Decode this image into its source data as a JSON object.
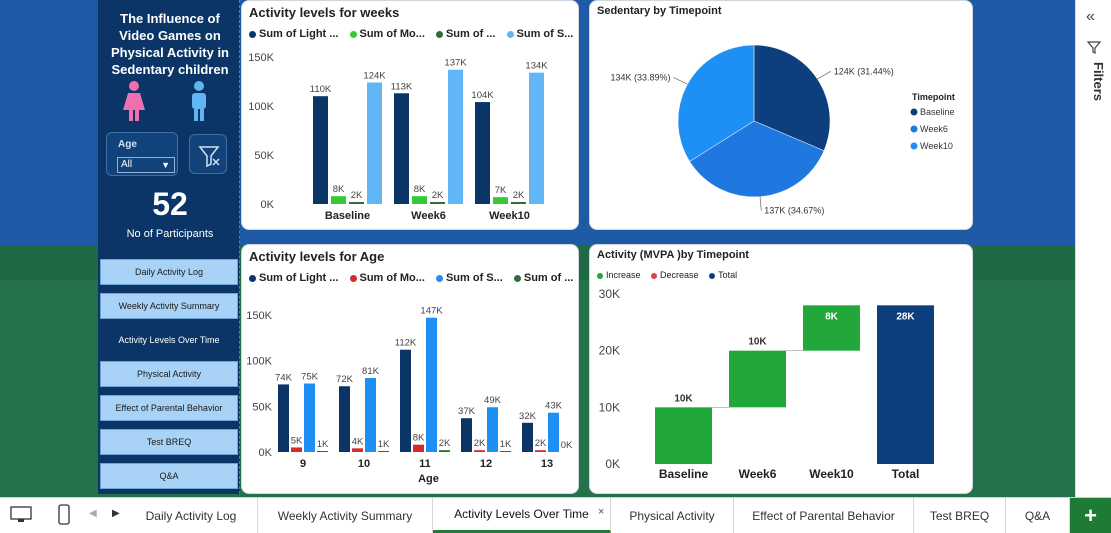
{
  "sidebar": {
    "title_lines": [
      "The Influence of",
      "Video Games on",
      "Physical Activity in",
      "Sedentary children"
    ],
    "age_label": "Age",
    "age_value": "All",
    "participants_count": "52",
    "participants_label": "No of Participants",
    "nav": [
      {
        "label": "Daily Activity Log"
      },
      {
        "label": "Weekly Activity Summary"
      },
      {
        "label": "Activity Levels Over Time"
      },
      {
        "label": "Physical Activity"
      },
      {
        "label": "Effect of Parental Behavior"
      },
      {
        "label": "Test BREQ"
      },
      {
        "label": "Q&A"
      }
    ]
  },
  "filters_pane": {
    "label": "Filters"
  },
  "tabs": {
    "items": [
      "Daily Activity Log",
      "Weekly Activity Summary",
      "Activity Levels Over Time",
      "Physical Activity",
      "Effect of Parental Behavior",
      "Test BREQ",
      "Q&A"
    ],
    "add_label": "+"
  },
  "colors": {
    "navy": "#0b3566",
    "green": "#37c837",
    "darkgreen": "#2e6b3a",
    "light": "#62b6f5",
    "blue": "#1e90f5",
    "red": "#d62b2b",
    "wf_green": "#22a83a",
    "wf_total": "#0d3f7e"
  },
  "chart_data": [
    {
      "type": "bar",
      "title": "Activity levels for weeks",
      "legend": [
        "Sum of Light ...",
        "Sum of Mo...",
        "Sum of ...",
        "Sum of S..."
      ],
      "categories": [
        "Baseline",
        "Week6",
        "Week10"
      ],
      "series": [
        {
          "name": "Sum of Light Activity",
          "values": [
            110,
            113,
            104
          ],
          "labels": [
            "110K",
            "113K",
            "104K"
          ]
        },
        {
          "name": "Sum of Moderate Activity",
          "values": [
            8,
            8,
            7
          ],
          "labels": [
            "8K",
            "8K",
            "7K"
          ]
        },
        {
          "name": "Sum of Vigorous Activity",
          "values": [
            2,
            2,
            2
          ],
          "labels": [
            "2K",
            "2K",
            "2K"
          ]
        },
        {
          "name": "Sum of Sedentary",
          "values": [
            124,
            137,
            134
          ],
          "labels": [
            "124K",
            "137K",
            "134K"
          ]
        }
      ],
      "yticks": [
        "150K",
        "100K",
        "50K",
        "0K"
      ],
      "ylim": [
        0,
        150
      ]
    },
    {
      "type": "pie",
      "title": "Sedentary by Timepoint",
      "legend_title": "Timepoint",
      "slices": [
        {
          "name": "Baseline",
          "value": 124,
          "label": "124K (31.44%)"
        },
        {
          "name": "Week6",
          "value": 137,
          "label": "137K (34.67%)"
        },
        {
          "name": "Week10",
          "value": 134,
          "label": "134K (33.89%)"
        }
      ]
    },
    {
      "type": "bar",
      "title": "Activity levels for Age",
      "legend": [
        "Sum of Light ...",
        "Sum of Mo...",
        "Sum of S...",
        "Sum of ..."
      ],
      "xlabel": "Age",
      "categories": [
        "9",
        "10",
        "11",
        "12",
        "13"
      ],
      "series": [
        {
          "name": "Sum of Light Activity",
          "values": [
            74,
            72,
            112,
            37,
            32
          ],
          "labels": [
            "74K",
            "72K",
            "112K",
            "37K",
            "32K"
          ]
        },
        {
          "name": "Sum of Moderate Activity",
          "values": [
            5,
            4,
            8,
            2,
            2
          ],
          "labels": [
            "5K",
            "4K",
            "8K",
            "2K",
            "2K"
          ]
        },
        {
          "name": "Sum of Sedentary",
          "values": [
            75,
            81,
            147,
            49,
            43
          ],
          "labels": [
            "75K",
            "81K",
            "147K",
            "49K",
            "43K"
          ]
        },
        {
          "name": "Sum of Vigorous Activity",
          "values": [
            1,
            1,
            2,
            1,
            0
          ],
          "labels": [
            "1K",
            "1K",
            "2K",
            "1K",
            "0K"
          ]
        }
      ],
      "yticks": [
        "150K",
        "100K",
        "50K",
        "0K"
      ],
      "ylim": [
        0,
        150
      ]
    },
    {
      "type": "waterfall",
      "title": "Activity (MVPA )by Timepoint",
      "legend": [
        "Increase",
        "Decrease",
        "Total"
      ],
      "categories": [
        "Baseline",
        "Week6",
        "Week10",
        "Total"
      ],
      "values": [
        10,
        10,
        8,
        28
      ],
      "labels": [
        "10K",
        "10K",
        "8K",
        "28K"
      ],
      "yticks": [
        "30K",
        "20K",
        "10K",
        "0K"
      ],
      "ylim": [
        0,
        30
      ]
    }
  ]
}
